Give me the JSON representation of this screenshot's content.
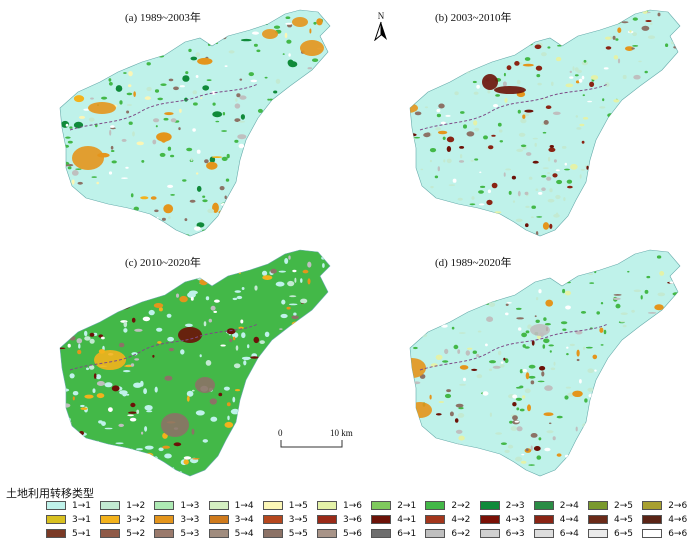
{
  "panels": [
    {
      "title": "(a) 1989~2003年"
    },
    {
      "title": "(b) 2003~2010年"
    },
    {
      "title": "(c) 2010~2020年"
    },
    {
      "title": "(d) 1989~2020年"
    }
  ],
  "north_arrow": {
    "label": "N"
  },
  "scale_bar": {
    "start": "0",
    "end": "10 km"
  },
  "legend": {
    "title": "土地利用转移类型",
    "rows": [
      [
        {
          "label": "1→1",
          "color": "#bff2ea"
        },
        {
          "label": "1→2",
          "color": "#c3ead2"
        },
        {
          "label": "1→3",
          "color": "#aeeab4"
        },
        {
          "label": "1→4",
          "color": "#d5f0c2"
        },
        {
          "label": "1→5",
          "color": "#fbf6b6"
        },
        {
          "label": "1→6",
          "color": "#e4f2a8"
        },
        {
          "label": "2→1",
          "color": "#7fc95d"
        },
        {
          "label": "2→2",
          "color": "#43b848"
        },
        {
          "label": "2→3",
          "color": "#108a3a"
        },
        {
          "label": "2→4",
          "color": "#2a8c45"
        },
        {
          "label": "2→5",
          "color": "#7a9a2e"
        },
        {
          "label": "2→6",
          "color": "#a8a030"
        }
      ],
      [
        {
          "label": "3→1",
          "color": "#d8c020"
        },
        {
          "label": "3→2",
          "color": "#f3b21c"
        },
        {
          "label": "3→3",
          "color": "#e4951c"
        },
        {
          "label": "3→4",
          "color": "#cf7a1c"
        },
        {
          "label": "3→5",
          "color": "#b5471e"
        },
        {
          "label": "3→6",
          "color": "#9a2a18"
        },
        {
          "label": "4→1",
          "color": "#6c1208"
        },
        {
          "label": "4→2",
          "color": "#a3361c"
        },
        {
          "label": "4→3",
          "color": "#7a1006"
        },
        {
          "label": "4→4",
          "color": "#8a2414"
        },
        {
          "label": "4→5",
          "color": "#6a2a18"
        },
        {
          "label": "4→6",
          "color": "#5a2416"
        }
      ],
      [
        {
          "label": "5→1",
          "color": "#7a3a26"
        },
        {
          "label": "5→2",
          "color": "#8f5a48"
        },
        {
          "label": "5→3",
          "color": "#9a7a6c"
        },
        {
          "label": "5→4",
          "color": "#a08c7e"
        },
        {
          "label": "5→5",
          "color": "#8c7266"
        },
        {
          "label": "5→6",
          "color": "#a89488"
        },
        {
          "label": "6→1",
          "color": "#6e6e6e"
        },
        {
          "label": "6→2",
          "color": "#bfbfbf"
        },
        {
          "label": "6→3",
          "color": "#d0d0d0"
        },
        {
          "label": "6→4",
          "color": "#dddddd"
        },
        {
          "label": "6→5",
          "color": "#ebebeb"
        },
        {
          "label": "6→6",
          "color": "#ffffff"
        }
      ]
    ]
  }
}
